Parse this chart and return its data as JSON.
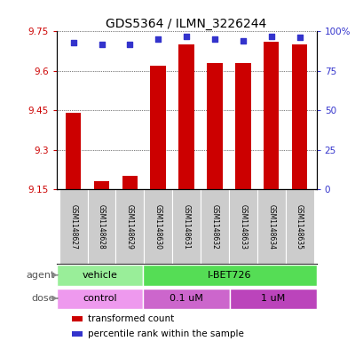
{
  "title": "GDS5364 / ILMN_3226244",
  "samples": [
    "GSM1148627",
    "GSM1148628",
    "GSM1148629",
    "GSM1148630",
    "GSM1148631",
    "GSM1148632",
    "GSM1148633",
    "GSM1148634",
    "GSM1148635"
  ],
  "transformed_counts": [
    9.44,
    9.18,
    9.2,
    9.62,
    9.7,
    9.63,
    9.63,
    9.71,
    9.7
  ],
  "percentile_ranks": [
    93,
    92,
    92,
    95,
    97,
    95,
    94,
    97,
    96
  ],
  "ylim_left": [
    9.15,
    9.75
  ],
  "ylim_right": [
    0,
    100
  ],
  "yticks_left": [
    9.15,
    9.3,
    9.45,
    9.6,
    9.75
  ],
  "ytick_labels_left": [
    "9.15",
    "9.3",
    "9.45",
    "9.6",
    "9.75"
  ],
  "yticks_right": [
    0,
    25,
    50,
    75,
    100
  ],
  "ytick_labels_right": [
    "0",
    "25",
    "50",
    "75",
    "100%"
  ],
  "bar_color": "#cc0000",
  "dot_color": "#3333cc",
  "agent_labels": [
    {
      "label": "vehicle",
      "start": 0,
      "end": 3,
      "color": "#99ee99"
    },
    {
      "label": "I-BET726",
      "start": 3,
      "end": 9,
      "color": "#55dd55"
    }
  ],
  "dose_labels": [
    {
      "label": "control",
      "start": 0,
      "end": 3,
      "color": "#ee99ee"
    },
    {
      "label": "0.1 uM",
      "start": 3,
      "end": 6,
      "color": "#cc66cc"
    },
    {
      "label": "1 uM",
      "start": 6,
      "end": 9,
      "color": "#bb44bb"
    }
  ],
  "legend_items": [
    {
      "color": "#cc0000",
      "label": "transformed count"
    },
    {
      "color": "#3333cc",
      "label": "percentile rank within the sample"
    }
  ],
  "tick_color_left": "#cc0000",
  "tick_color_right": "#3333cc",
  "sample_box_color": "#cccccc",
  "background_color": "#ffffff",
  "grid_color": "#000000",
  "bar_width": 0.55,
  "base_value": 9.15,
  "n_samples": 9
}
